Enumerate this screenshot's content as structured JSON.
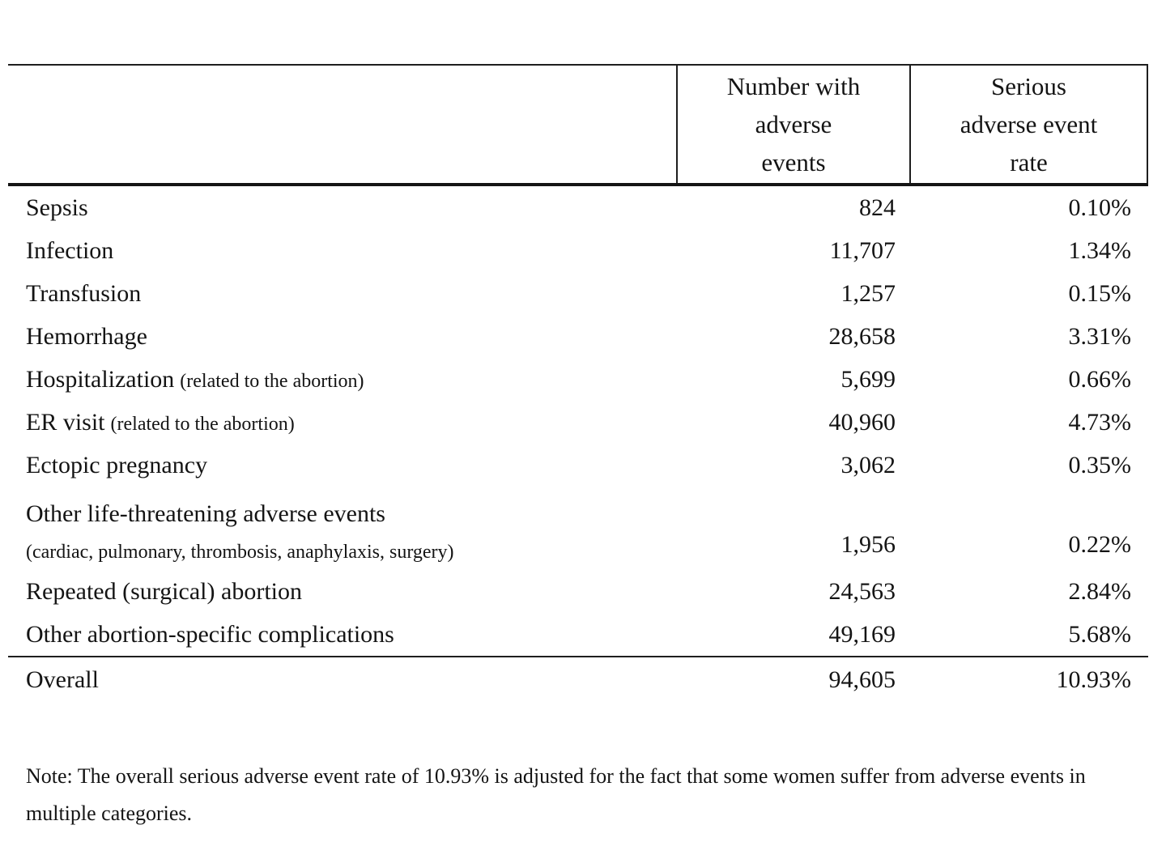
{
  "table": {
    "header": {
      "number_col": "Number with adverse events",
      "number_col_lines": [
        "Number with",
        "adverse",
        "events"
      ],
      "rate_col": "Serious adverse event rate",
      "rate_col_lines": [
        "Serious",
        "adverse event",
        "rate"
      ]
    },
    "rows": [
      {
        "label": "Sepsis",
        "number": "824",
        "rate": "0.10%"
      },
      {
        "label": "Infection",
        "number": "11,707",
        "rate": "1.34%"
      },
      {
        "label": "Transfusion",
        "number": "1,257",
        "rate": "0.15%"
      },
      {
        "label": "Hemorrhage",
        "number": "28,658",
        "rate": "3.31%"
      },
      {
        "label": "Hospitalization",
        "sublabel": "(related to the abortion)",
        "number": "5,699",
        "rate": "0.66%"
      },
      {
        "label": "ER visit",
        "sublabel": "(related to the abortion)",
        "number": "40,960",
        "rate": "4.73%"
      },
      {
        "label": "Ectopic pregnancy",
        "number": "3,062",
        "rate": "0.35%"
      },
      {
        "label": "Other life-threatening adverse events",
        "sublabel": "(cardiac, pulmonary, thrombosis, anaphylaxis, surgery)",
        "number": "1,956",
        "rate": "0.22%"
      },
      {
        "label": "Repeated (surgical) abortion",
        "number": "24,563",
        "rate": "2.84%"
      },
      {
        "label": "Other abortion-specific complications",
        "number": "49,169",
        "rate": "5.68%"
      }
    ],
    "overall": {
      "label": "Overall",
      "number": "94,605",
      "rate": "10.93%"
    }
  },
  "note": "Note: The overall serious adverse event rate of 10.93% is adjusted for the fact that some women suffer from adverse events in multiple categories."
}
